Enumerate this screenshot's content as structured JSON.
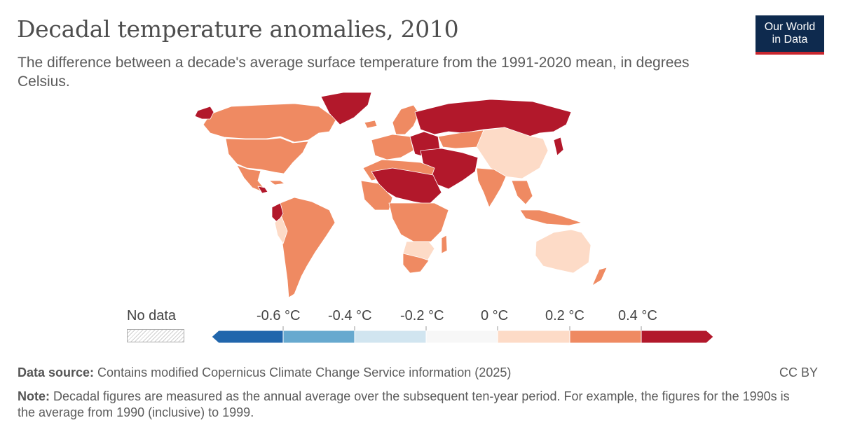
{
  "header": {
    "title": "Decadal temperature anomalies, 2010",
    "subtitle": "The difference between a decade's average surface temperature from the 1991-2020 mean, in degrees Celsius."
  },
  "logo": {
    "line1": "Our World",
    "line2": "in Data"
  },
  "legend": {
    "no_data_label": "No data",
    "ticks": [
      "-0.6 °C",
      "-0.4 °C",
      "-0.2 °C",
      "0 °C",
      "0.2 °C",
      "0.4 °C"
    ],
    "bins": [
      {
        "range": "< -0.6",
        "color": "#2166ac"
      },
      {
        "range": "-0.6 to -0.4",
        "color": "#67a9cf"
      },
      {
        "range": "-0.4 to -0.2",
        "color": "#d1e5f0"
      },
      {
        "range": "-0.2 to 0",
        "color": "#f7f7f7"
      },
      {
        "range": "0 to 0.2",
        "color": "#fddbc7"
      },
      {
        "range": "0.2 to 0.4",
        "color": "#ef8a62"
      },
      {
        "range": "> 0.4",
        "color": "#b2182b"
      }
    ]
  },
  "colors": {
    "low_bin": "#fddbc7",
    "mid_bin": "#ef8a62",
    "high_bin": "#b2182b",
    "nodata": "#cfcfcf"
  },
  "map_regions": [
    {
      "region": "Canada",
      "bin": "0.2 to 0.4"
    },
    {
      "region": "United States",
      "bin": "0.2 to 0.4"
    },
    {
      "region": "Alaska",
      "bin": "> 0.4"
    },
    {
      "region": "Mexico",
      "bin": "0.2 to 0.4"
    },
    {
      "region": "Central America",
      "bin": "0.2 to 0.4"
    },
    {
      "region": "South America",
      "bin": "0.2 to 0.4"
    },
    {
      "region": "Peru",
      "bin": "0 to 0.2"
    },
    {
      "region": "Ecuador",
      "bin": "> 0.4"
    },
    {
      "region": "Greenland",
      "bin": "> 0.4"
    },
    {
      "region": "Western Europe",
      "bin": "0.2 to 0.4"
    },
    {
      "region": "Scandinavia",
      "bin": "0.2 to 0.4"
    },
    {
      "region": "Eastern Europe",
      "bin": "> 0.4"
    },
    {
      "region": "Russia",
      "bin": "> 0.4"
    },
    {
      "region": "Kazakhstan",
      "bin": "0.2 to 0.4"
    },
    {
      "region": "Mongolia and China",
      "bin": "0 to 0.2"
    },
    {
      "region": "Middle East",
      "bin": "> 0.4"
    },
    {
      "region": "India",
      "bin": "0.2 to 0.4"
    },
    {
      "region": "Southeast Asia",
      "bin": "0.2 to 0.4"
    },
    {
      "region": "Japan",
      "bin": "> 0.4"
    },
    {
      "region": "Sahara belt",
      "bin": "> 0.4"
    },
    {
      "region": "Sub-Saharan Africa",
      "bin": "0.2 to 0.4"
    },
    {
      "region": "Southern Africa",
      "bin": "0 to 0.2"
    },
    {
      "region": "Australia",
      "bin": "0 to 0.2"
    },
    {
      "region": "New Zealand",
      "bin": "0.2 to 0.4"
    }
  ],
  "footer": {
    "source_label": "Data source:",
    "source_text": " Contains modified Copernicus Climate Change Service information (2025)",
    "license": "CC BY",
    "note_label": "Note:",
    "note_text": " Decadal figures are measured as the annual average over the subsequent ten-year period. For example, the figures for the 1990s is the average from 1990 (inclusive) to 1999."
  }
}
